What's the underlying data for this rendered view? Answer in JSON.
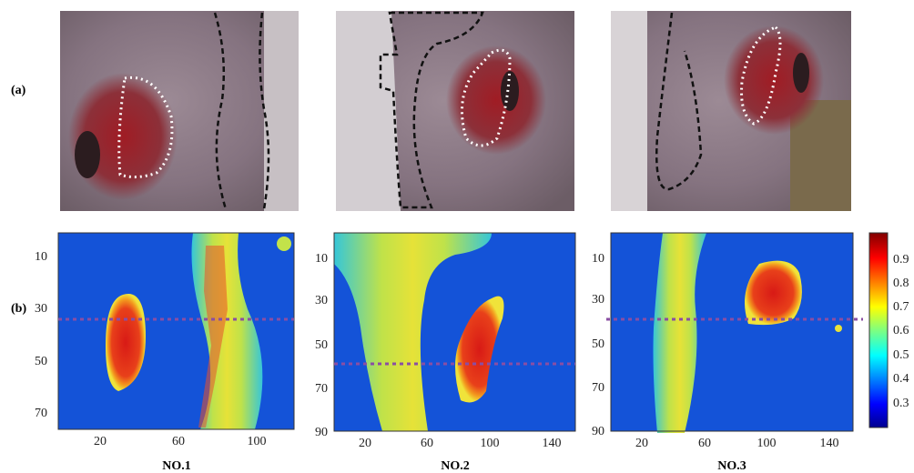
{
  "figure": {
    "row_labels": [
      "(a)",
      "(b)"
    ],
    "panels": [
      {
        "title": "NO.1",
        "xticks": [
          "20",
          "60",
          "100"
        ],
        "yticks": [
          "10",
          "30",
          "50",
          "70"
        ],
        "xlim": [
          0,
          120
        ],
        "ylim": [
          75,
          0
        ],
        "marker_y": 36,
        "outer_band_x": [
          70,
          90
        ],
        "red_blob_center": [
          30,
          41
        ]
      },
      {
        "title": "NO.2",
        "xticks": [
          "20",
          "60",
          "100",
          "140"
        ],
        "yticks": [
          "10",
          "30",
          "50",
          "70",
          "90"
        ],
        "xlim": [
          0,
          155
        ],
        "ylim": [
          90,
          0
        ],
        "marker_y": 59,
        "outer_band_x": [
          35,
          60
        ],
        "red_blob_center": [
          100,
          54
        ]
      },
      {
        "title": "NO.3",
        "xticks": [
          "20",
          "60",
          "100",
          "140"
        ],
        "yticks": [
          "10",
          "30",
          "50",
          "70",
          "90"
        ],
        "xlim": [
          0,
          155
        ],
        "ylim": [
          90,
          0
        ],
        "marker_y": 40,
        "outer_band_x": [
          30,
          48
        ],
        "red_blob_center": [
          97,
          30
        ]
      }
    ],
    "colorbar": {
      "ticks": [
        "0.9",
        "0.8",
        "0.7",
        "0.6",
        "0.5",
        "0.4",
        "0.3"
      ],
      "range": [
        0.2,
        1.0
      ],
      "colormap": "jet"
    }
  },
  "colors": {
    "heat_bg": "#1453d8",
    "heat_band": "#e3e636",
    "heat_red": "#d8191d",
    "marker": "#8a4ea3",
    "skin": "#8b7c85"
  }
}
